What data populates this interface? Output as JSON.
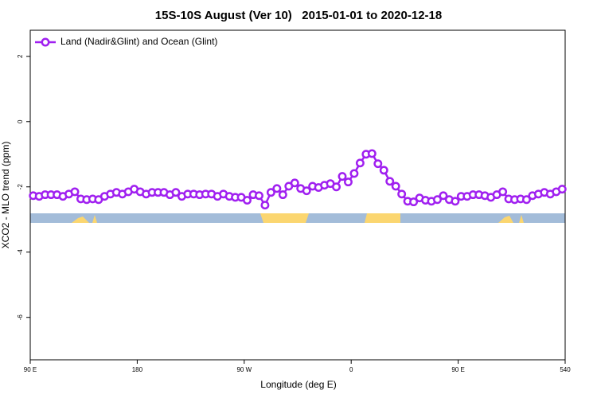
{
  "chart_data": {
    "type": "line",
    "title": "15S-10S August (Ver 10)   2015-01-01 to 2020-12-18",
    "x_label": "Longitude (deg E)",
    "y_label": "XCO2 - MLO trend (ppm)",
    "x": [
      92.5,
      97.5,
      102.5,
      107.5,
      112.5,
      117.5,
      122.5,
      127.5,
      132.5,
      137.5,
      142.5,
      147.5,
      152.5,
      157.5,
      162.5,
      167.5,
      172.5,
      177.5,
      182.5,
      187.5,
      192.5,
      197.5,
      202.5,
      207.5,
      212.5,
      217.5,
      222.5,
      227.5,
      232.5,
      237.5,
      242.5,
      247.5,
      252.5,
      257.5,
      262.5,
      267.5,
      272.5,
      277.5,
      282.5,
      287.5,
      292.5,
      297.5,
      302.5,
      307.5,
      312.5,
      317.5,
      322.5,
      327.5,
      332.5,
      337.5,
      342.5,
      347.5,
      352.5,
      357.5,
      362.5,
      367.5,
      372.5,
      377.5,
      382.5,
      387.5,
      392.5,
      397.5,
      402.5,
      407.5,
      412.5,
      417.5,
      422.5,
      427.5,
      432.5,
      437.5,
      442.5,
      447.5,
      452.5,
      457.5,
      462.5,
      467.5,
      472.5,
      477.5,
      482.5,
      487.5,
      492.5,
      497.5,
      502.5,
      507.5,
      512.5,
      517.5,
      522.5,
      527.5,
      532.5,
      537.5
    ],
    "series": [
      {
        "name": "Land (Nadir&Glint) and Ocean (Glint)",
        "color": "#a020f0",
        "values": [
          -2.27,
          -2.29,
          -2.24,
          -2.24,
          -2.24,
          -2.29,
          -2.22,
          -2.15,
          -2.37,
          -2.39,
          -2.37,
          -2.39,
          -2.29,
          -2.22,
          -2.17,
          -2.22,
          -2.15,
          -2.07,
          -2.15,
          -2.22,
          -2.17,
          -2.17,
          -2.17,
          -2.24,
          -2.17,
          -2.29,
          -2.22,
          -2.22,
          -2.24,
          -2.22,
          -2.22,
          -2.29,
          -2.22,
          -2.29,
          -2.32,
          -2.32,
          -2.41,
          -2.24,
          -2.27,
          -2.56,
          -2.17,
          -2.05,
          -2.24,
          -1.98,
          -1.88,
          -2.05,
          -2.12,
          -1.98,
          -2.02,
          -1.95,
          -1.9,
          -2.0,
          -1.68,
          -1.85,
          -1.59,
          -1.27,
          -1.0,
          -0.98,
          -1.29,
          -1.49,
          -1.83,
          -1.98,
          -2.22,
          -2.44,
          -2.46,
          -2.34,
          -2.41,
          -2.44,
          -2.39,
          -2.27,
          -2.39,
          -2.44,
          -2.29,
          -2.29,
          -2.24,
          -2.24,
          -2.27,
          -2.32,
          -2.24,
          -2.15,
          -2.37,
          -2.39,
          -2.37,
          -2.39,
          -2.27,
          -2.22,
          -2.17,
          -2.22,
          -2.15,
          -2.07
        ]
      }
    ],
    "xlim": [
      90,
      540
    ],
    "xticks": [
      {
        "value": 90,
        "label": "90 E"
      },
      180,
      {
        "value": 270,
        "label": "90 W"
      },
      {
        "value": 360,
        "label": "0"
      },
      {
        "value": 450,
        "label": "90 E"
      },
      540
    ],
    "ylim": [
      -7.3,
      2.8
    ],
    "yticks": [
      2,
      0,
      -2,
      -4,
      -6
    ],
    "legend": "top-left"
  }
}
